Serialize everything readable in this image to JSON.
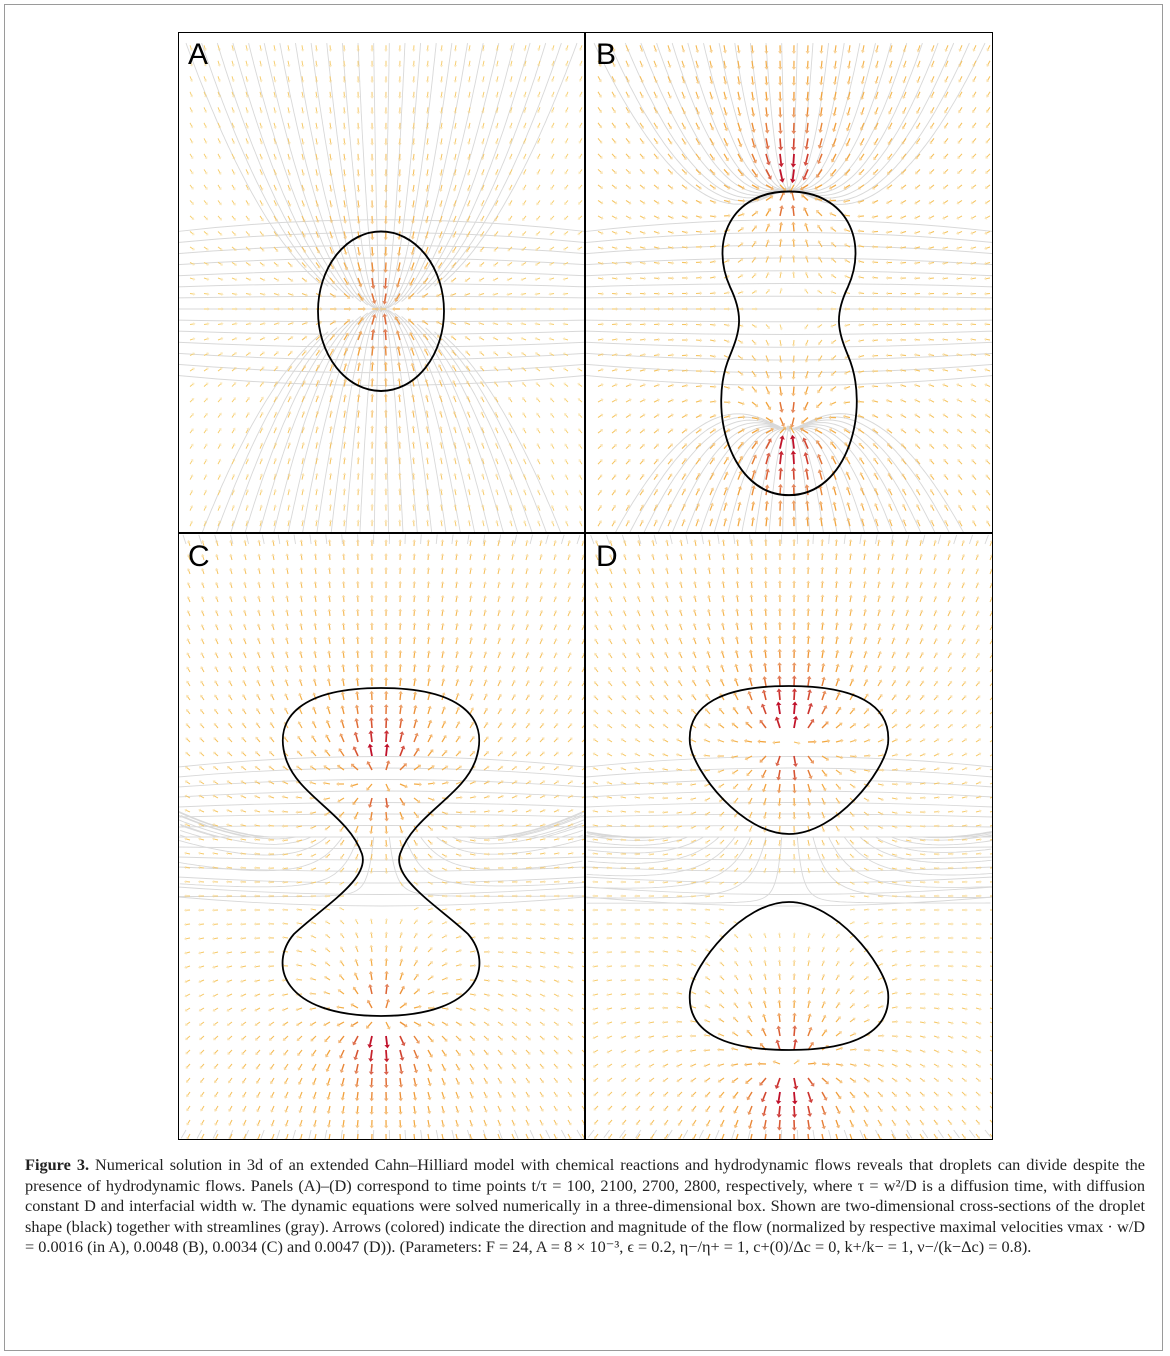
{
  "figure": {
    "panels": [
      {
        "letter": "A"
      },
      {
        "letter": "B"
      },
      {
        "letter": "C"
      },
      {
        "letter": "D"
      }
    ],
    "colors": {
      "streamline": "#d2d2d2",
      "droplet": "#000000",
      "arrow_low": "#f7d774",
      "arrow_mid": "#f2a23a",
      "arrow_high": "#c0102a"
    }
  },
  "caption": {
    "label": "Figure 3.",
    "text": " Numerical solution in 3d of an extended Cahn–Hilliard model with chemical reactions and hydrodynamic flows reveals that droplets can divide despite the presence of hydrodynamic flows. Panels (A)–(D) correspond to time points t/τ = 100, 2100, 2700, 2800, respectively, where τ = w²/D is a diffusion time, with diffusion constant D and interfacial width w. The dynamic equations were solved numerically in a three-dimensional box. Shown are two-dimensional cross-sections of the droplet shape (black) together with streamlines (gray). Arrows (colored) indicate the direction and magnitude of the flow (normalized by respective maximal velocities vmax · w/D = 0.0016 (in A), 0.0048 (B), 0.0034 (C) and 0.0047 (D)). (Parameters: F = 24, A = 8 × 10⁻³, ϵ = 0.2, η−/η+ = 1, c+(0)/Δc = 0, k+/k− = 1, ν−/(k−Δc) = 0.8)."
  }
}
